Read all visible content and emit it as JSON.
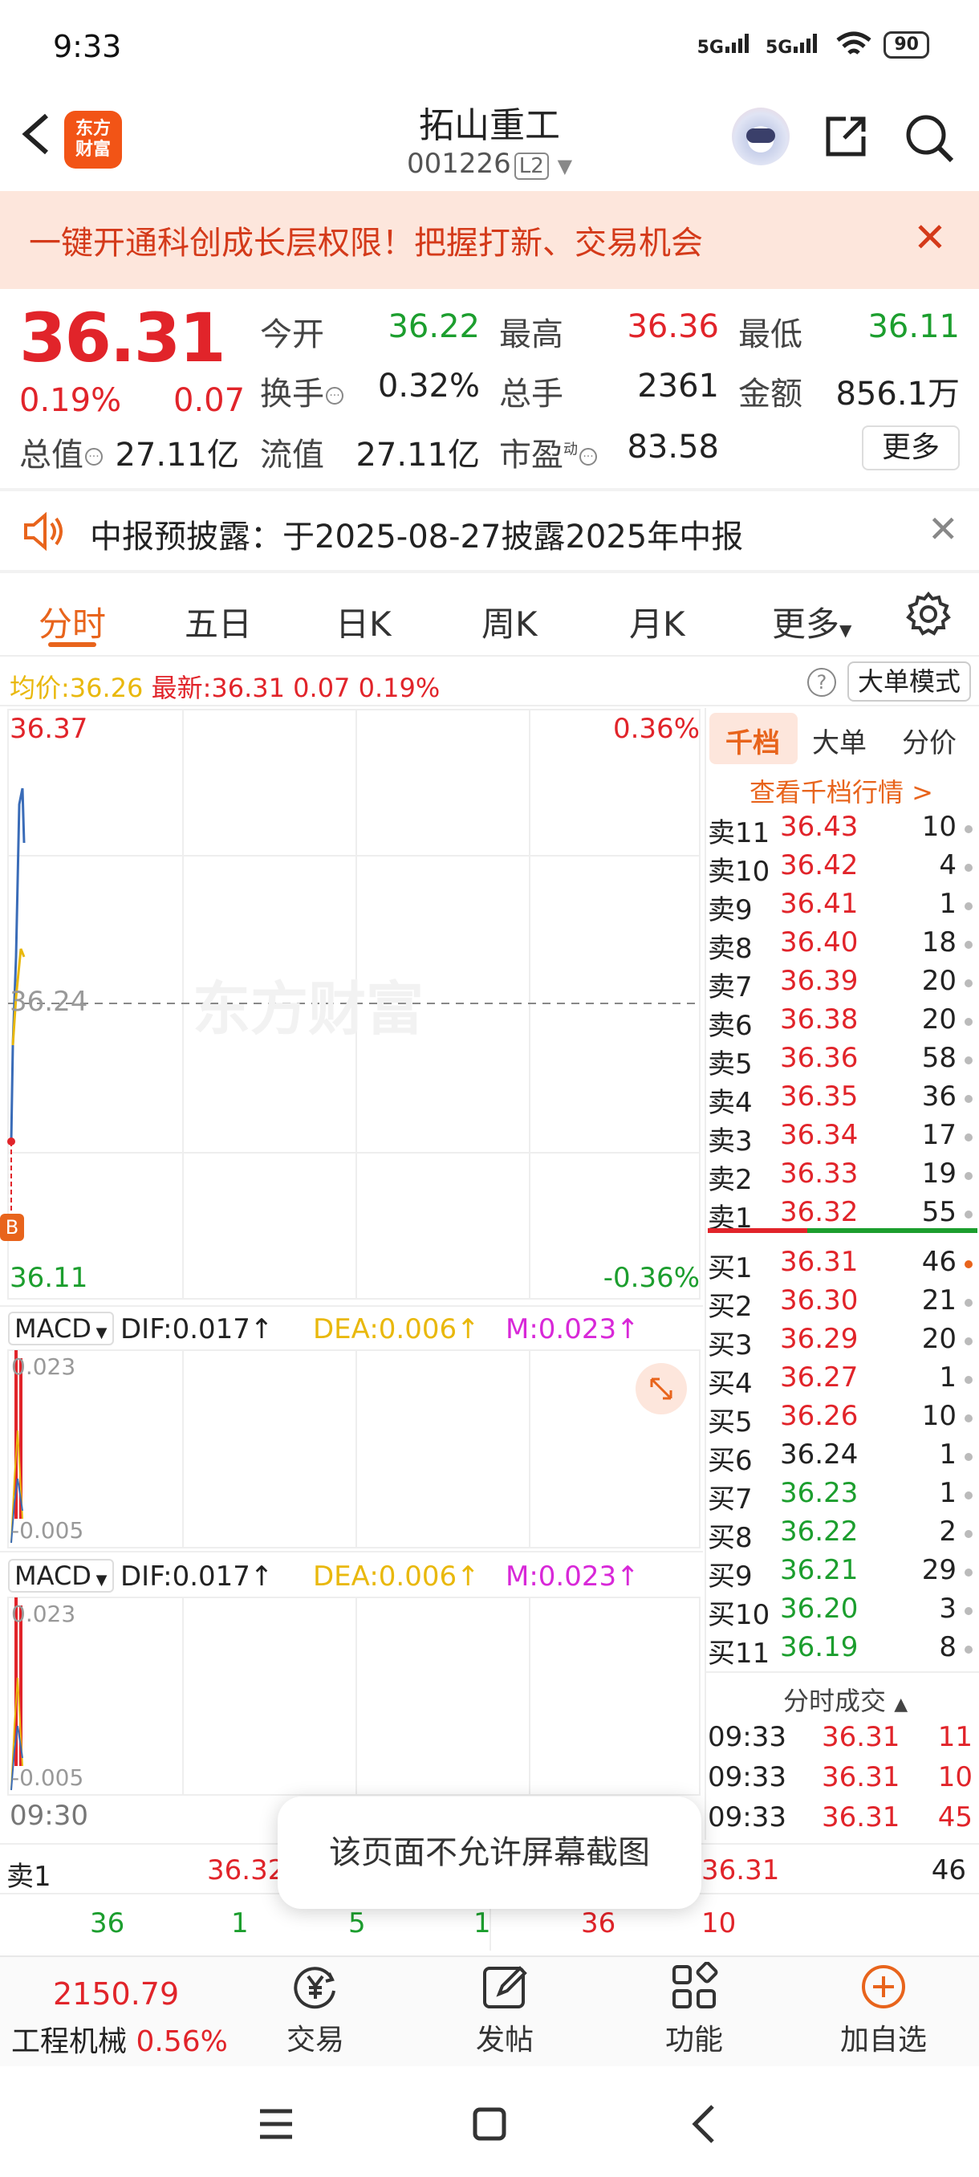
{
  "status": {
    "time": "9:33",
    "net1": "5G",
    "net2": "5G",
    "battery": "90"
  },
  "header": {
    "title": "拓山重工",
    "code": "001226",
    "level": "L2"
  },
  "banner": {
    "text": "一键开通科创成长层权限！把握打新、交易机会"
  },
  "quote": {
    "price": "36.31",
    "pct": "0.19%",
    "chg": "0.07",
    "open_label": "今开",
    "open": "36.22",
    "high_label": "最高",
    "high": "36.36",
    "low_label": "最低",
    "low": "36.11",
    "turnover_label": "换手",
    "turnover": "0.32%",
    "volume_label": "总手",
    "volume": "2361",
    "amount_label": "金额",
    "amount": "856.1万",
    "mktcap_label": "总值",
    "mktcap": "27.11亿",
    "float_label": "流值",
    "float": "27.11亿",
    "pe_label": "市盈",
    "pe_sup": "动",
    "pe": "83.58",
    "more": "更多"
  },
  "notice": {
    "text": "中报预披露：于2025-08-27披露2025年中报"
  },
  "tabs": [
    "分时",
    "五日",
    "日K",
    "周K",
    "月K",
    "更多"
  ],
  "avg": {
    "avg_label": "均价:",
    "avg": "36.26",
    "last_label": "最新:",
    "last": "36.31",
    "chg": "0.07",
    "pct": "0.19%",
    "mode_btn": "大单模式"
  },
  "chart": {
    "y_top": "36.37",
    "y_top_pct": "0.36%",
    "y_mid": "36.24",
    "y_bottom": "36.11",
    "y_bottom_pct": "-0.36%",
    "watermark": "东方财富",
    "marker": "B",
    "time_start": "09:30",
    "macd1": {
      "name": "MACD",
      "dif": "DIF:0.017↑",
      "dea": "DEA:0.006↑",
      "m": "M:0.023↑",
      "top": "0.023",
      "bottom": "-0.005"
    },
    "macd2": {
      "name": "MACD",
      "dif": "DIF:0.017↑",
      "dea": "DEA:0.006↑",
      "m": "M:0.023↑",
      "top": "0.023",
      "bottom": "-0.005"
    }
  },
  "orderbook": {
    "tabs": [
      "千档",
      "大单",
      "分价"
    ],
    "link": "查看千档行情 >",
    "asks": [
      {
        "label": "卖11",
        "price": "36.43",
        "vol": "10"
      },
      {
        "label": "卖10",
        "price": "36.42",
        "vol": "4"
      },
      {
        "label": "卖9",
        "price": "36.41",
        "vol": "1"
      },
      {
        "label": "卖8",
        "price": "36.40",
        "vol": "18"
      },
      {
        "label": "卖7",
        "price": "36.39",
        "vol": "20"
      },
      {
        "label": "卖6",
        "price": "36.38",
        "vol": "20"
      },
      {
        "label": "卖5",
        "price": "36.36",
        "vol": "58"
      },
      {
        "label": "卖4",
        "price": "36.35",
        "vol": "36"
      },
      {
        "label": "卖3",
        "price": "36.34",
        "vol": "17"
      },
      {
        "label": "卖2",
        "price": "36.33",
        "vol": "19"
      },
      {
        "label": "卖1",
        "price": "36.32",
        "vol": "55"
      }
    ],
    "bids": [
      {
        "label": "买1",
        "price": "36.31",
        "vol": "46",
        "color": "red"
      },
      {
        "label": "买2",
        "price": "36.30",
        "vol": "21",
        "color": "red"
      },
      {
        "label": "买3",
        "price": "36.29",
        "vol": "20",
        "color": "red"
      },
      {
        "label": "买4",
        "price": "36.27",
        "vol": "1",
        "color": "red"
      },
      {
        "label": "买5",
        "price": "36.26",
        "vol": "10",
        "color": "red"
      },
      {
        "label": "买6",
        "price": "36.24",
        "vol": "1",
        "color": "dark"
      },
      {
        "label": "买7",
        "price": "36.23",
        "vol": "1",
        "color": "green"
      },
      {
        "label": "买8",
        "price": "36.22",
        "vol": "2",
        "color": "green"
      },
      {
        "label": "买9",
        "price": "36.21",
        "vol": "29",
        "color": "green"
      },
      {
        "label": "买10",
        "price": "36.20",
        "vol": "3",
        "color": "green"
      },
      {
        "label": "买11",
        "price": "36.19",
        "vol": "8",
        "color": "green"
      }
    ],
    "trades_title": "分时成交",
    "trades": [
      {
        "time": "09:33",
        "price": "36.31",
        "vol": "11"
      },
      {
        "time": "09:33",
        "price": "36.31",
        "vol": "10"
      },
      {
        "time": "09:33",
        "price": "36.31",
        "vol": "45"
      }
    ]
  },
  "bottom_strip": {
    "sell_label": "卖1",
    "sell_price": "36.32",
    "buy_price": "36.31",
    "buy_vol": "46",
    "vols": [
      "36",
      "1",
      "5",
      "1",
      "36",
      "10"
    ]
  },
  "toast": "该页面不允许屏幕截图",
  "bottom_nav": {
    "index_value": "2150.79",
    "index_name": "工程机械",
    "index_pct": "0.56%",
    "items": [
      "交易",
      "发帖",
      "功能",
      "加自选"
    ]
  }
}
